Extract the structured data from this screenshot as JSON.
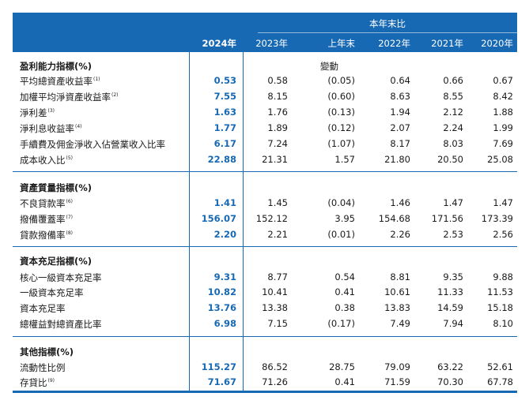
{
  "header": {
    "group_label": "本年末比",
    "columns": [
      "2024年",
      "2023年",
      "上年末",
      "2022年",
      "2021年",
      "2020年"
    ]
  },
  "change_label": "變動",
  "sections": [
    {
      "title": "盈利能力指標(%)",
      "rows": [
        {
          "label": "平均總資產收益率",
          "note": "(1)",
          "values": [
            "0.53",
            "0.58",
            "(0.05)",
            "0.64",
            "0.66",
            "0.67"
          ]
        },
        {
          "label": "加權平均淨資產收益率",
          "note": "(2)",
          "values": [
            "7.55",
            "8.15",
            "(0.60)",
            "8.63",
            "8.55",
            "8.42"
          ]
        },
        {
          "label": "淨利差",
          "note": "(3)",
          "values": [
            "1.63",
            "1.76",
            "(0.13)",
            "1.94",
            "2.12",
            "1.88"
          ]
        },
        {
          "label": "淨利息收益率",
          "note": "(4)",
          "values": [
            "1.77",
            "1.89",
            "(0.12)",
            "2.07",
            "2.24",
            "1.99"
          ]
        },
        {
          "label": "手續費及佣金淨收入佔營業收入比率",
          "note": "",
          "values": [
            "6.17",
            "7.24",
            "(1.07)",
            "8.17",
            "8.03",
            "7.69"
          ]
        },
        {
          "label": "成本收入比",
          "note": "(5)",
          "values": [
            "22.88",
            "21.31",
            "1.57",
            "21.80",
            "20.50",
            "25.08"
          ]
        }
      ]
    },
    {
      "title": "資產質量指標(%)",
      "rows": [
        {
          "label": "不良貸款率",
          "note": "(6)",
          "values": [
            "1.41",
            "1.45",
            "(0.04)",
            "1.46",
            "1.47",
            "1.47"
          ]
        },
        {
          "label": "撥備覆蓋率",
          "note": "(7)",
          "values": [
            "156.07",
            "152.12",
            "3.95",
            "154.68",
            "171.56",
            "173.39"
          ]
        },
        {
          "label": "貸款撥備率",
          "note": "(8)",
          "values": [
            "2.20",
            "2.21",
            "(0.01)",
            "2.26",
            "2.53",
            "2.56"
          ]
        }
      ]
    },
    {
      "title": "資本充足指標(%)",
      "rows": [
        {
          "label": "核心一級資本充足率",
          "note": "",
          "values": [
            "9.31",
            "8.77",
            "0.54",
            "8.81",
            "9.35",
            "9.88"
          ]
        },
        {
          "label": "一級資本充足率",
          "note": "",
          "values": [
            "10.82",
            "10.41",
            "0.41",
            "10.61",
            "11.33",
            "11.53"
          ]
        },
        {
          "label": "資本充足率",
          "note": "",
          "values": [
            "13.76",
            "13.38",
            "0.38",
            "13.83",
            "14.59",
            "15.18"
          ]
        },
        {
          "label": "總權益對總資產比率",
          "note": "",
          "values": [
            "6.98",
            "7.15",
            "(0.17)",
            "7.49",
            "7.94",
            "8.10"
          ]
        }
      ]
    },
    {
      "title": "其他指標(%)",
      "rows": [
        {
          "label": "流動性比例",
          "note": "",
          "values": [
            "115.27",
            "86.52",
            "28.75",
            "79.09",
            "63.22",
            "52.61"
          ]
        },
        {
          "label": "存貸比",
          "note": "(9)",
          "values": [
            "71.67",
            "71.26",
            "0.41",
            "71.59",
            "70.30",
            "67.78"
          ]
        }
      ]
    }
  ]
}
